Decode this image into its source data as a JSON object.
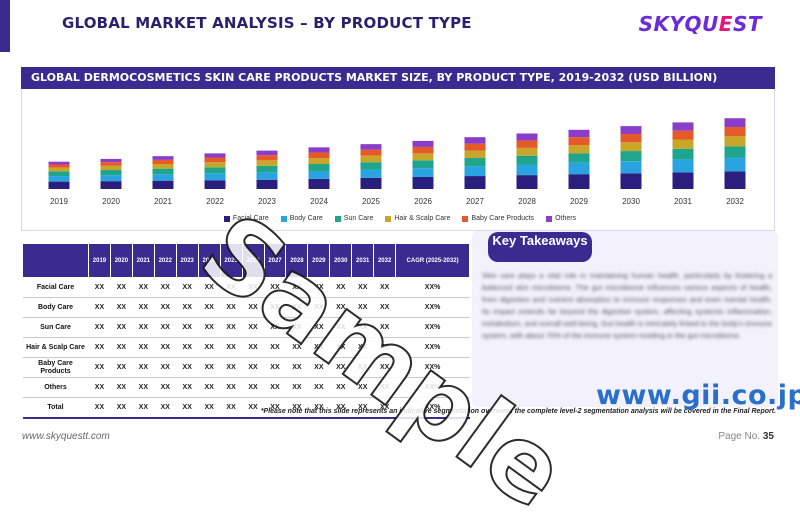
{
  "page": {
    "title": "GLOBAL MARKET ANALYSIS – BY PRODUCT TYPE",
    "logo": {
      "main": "SKYQU",
      "accent": "E",
      "tail": "ST"
    },
    "footer_url": "www.skyquestt.com",
    "page_no_label": "Page No.",
    "page_no": "35",
    "footnote": "*Please note that this slide represents an indicative segmentation overview. the complete level-2 segmentation analysis will be covered in the Final Report.",
    "watermark_text": "Sample",
    "gii_text": "www.gii.co.jp"
  },
  "colors": {
    "primary": "#3b2a8f",
    "series": [
      "#2a1f7e",
      "#2aa4e0",
      "#1fa58b",
      "#c8a62a",
      "#e65a2a",
      "#8a3dc9"
    ]
  },
  "chart_data": {
    "type": "bar",
    "stacked": true,
    "title": "GLOBAL DERMOCOSMETICS SKIN CARE PRODUCTS MARKET SIZE,  BY PRODUCT TYPE, 2019-2032 (USD BILLION)",
    "categories": [
      "2019",
      "2020",
      "2021",
      "2022",
      "2023",
      "2024",
      "2025",
      "2026",
      "2027",
      "2028",
      "2029",
      "2030",
      "2031",
      "2032"
    ],
    "series": [
      {
        "name": "Facial Care",
        "values": [
          8,
          8.5,
          9,
          9.5,
          10,
          11,
          12,
          13,
          14,
          15,
          16,
          17,
          18,
          19
        ]
      },
      {
        "name": "Body Care",
        "values": [
          6,
          6.5,
          7,
          7.5,
          8,
          8.5,
          9,
          9.5,
          10.5,
          11.5,
          12.5,
          13,
          14,
          15
        ]
      },
      {
        "name": "Sun Care",
        "values": [
          5,
          5.5,
          6,
          6.5,
          7,
          7.5,
          8,
          8.5,
          9,
          9.5,
          10,
          11,
          11.5,
          12
        ]
      },
      {
        "name": "Hair & Scalp Care",
        "values": [
          4,
          4.5,
          5,
          5.5,
          6,
          6.5,
          7,
          7.5,
          8,
          8.5,
          9,
          9.5,
          10,
          11
        ]
      },
      {
        "name": "Baby Care Products",
        "values": [
          3.5,
          4,
          4.5,
          5,
          5.5,
          6,
          6.5,
          7,
          7.5,
          8,
          8.5,
          9,
          9.5,
          10
        ]
      },
      {
        "name": "Others",
        "values": [
          3,
          3.5,
          4,
          4.5,
          5,
          5.5,
          6,
          6.5,
          7,
          7.5,
          8,
          8.5,
          9,
          9.5
        ]
      }
    ],
    "ylim": [
      0,
      80
    ],
    "grid": false,
    "legend": "bottom"
  },
  "table": {
    "years": [
      "2019",
      "2020",
      "2021",
      "2022",
      "2023",
      "2024",
      "2025",
      "2026",
      "2027",
      "2028",
      "2029",
      "2030",
      "2031",
      "2032"
    ],
    "cagr_header": "CAGR (2025-2032)",
    "rows": [
      {
        "label": "Facial Care",
        "values": [
          "XX",
          "XX",
          "XX",
          "XX",
          "XX",
          "XX",
          "XX",
          "XX",
          "XX",
          "XX",
          "XX",
          "XX",
          "XX",
          "XX"
        ],
        "cagr": "XX%"
      },
      {
        "label": "Body Care",
        "values": [
          "XX",
          "XX",
          "XX",
          "XX",
          "XX",
          "XX",
          "XX",
          "XX",
          "XX",
          "XX",
          "XX",
          "XX",
          "XX",
          "XX"
        ],
        "cagr": "XX%"
      },
      {
        "label": "Sun Care",
        "values": [
          "XX",
          "XX",
          "XX",
          "XX",
          "XX",
          "XX",
          "XX",
          "XX",
          "XX",
          "XX",
          "XX",
          "XX",
          "XX",
          "XX"
        ],
        "cagr": "XX%"
      },
      {
        "label": "Hair & Scalp Care",
        "values": [
          "XX",
          "XX",
          "XX",
          "XX",
          "XX",
          "XX",
          "XX",
          "XX",
          "XX",
          "XX",
          "XX",
          "XX",
          "XX",
          "XX"
        ],
        "cagr": "XX%"
      },
      {
        "label": "Baby Care Products",
        "values": [
          "XX",
          "XX",
          "XX",
          "XX",
          "XX",
          "XX",
          "XX",
          "XX",
          "XX",
          "XX",
          "XX",
          "XX",
          "XX",
          "XX"
        ],
        "cagr": "XX%"
      },
      {
        "label": "Others",
        "values": [
          "XX",
          "XX",
          "XX",
          "XX",
          "XX",
          "XX",
          "XX",
          "XX",
          "XX",
          "XX",
          "XX",
          "XX",
          "XX",
          "XX"
        ],
        "cagr": "XX%"
      },
      {
        "label": "Total",
        "values": [
          "XX",
          "XX",
          "XX",
          "XX",
          "XX",
          "XX",
          "XX",
          "XX",
          "XX",
          "XX",
          "XX",
          "XX",
          "XX",
          "XX"
        ],
        "cagr": "XX%"
      }
    ]
  },
  "takeaways": {
    "title": "Key Takeaways",
    "text": "Skin care plays a vital role in maintaining human health, particularly by fostering a balanced skin microbiome. The gut microbiome influences various aspects of health, from digestion and nutrient absorption to immune responses and even mental health. Its impact extends far beyond the digestive system, affecting systemic inflammation, metabolism, and overall well-being. Gut health is intricately linked to the body's immune system, with about 70% of the immune system residing in the gut microbiome."
  }
}
